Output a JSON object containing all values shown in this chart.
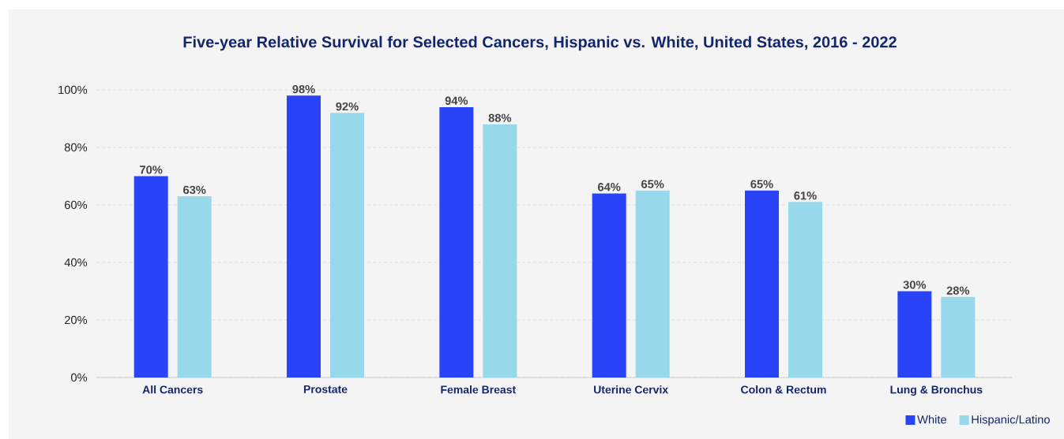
{
  "chart_data": {
    "type": "bar",
    "title": "Five-year Relative Survival for Selected Cancers, Hispanic vs. White, United States, 2016 - 2022",
    "categories": [
      "All Cancers",
      "Prostate",
      "Female Breast",
      "Uterine Cervix",
      "Colon & Rectum",
      "Lung & Bronchus"
    ],
    "series": [
      {
        "name": "White",
        "color": "#2944f7",
        "values": [
          70,
          98,
          94,
          64,
          65,
          30
        ],
        "value_labels": [
          "70%",
          "98%",
          "94%",
          "64%",
          "65%",
          "30%"
        ]
      },
      {
        "name": "Hispanic/Latino",
        "color": "#97d8eb",
        "values": [
          63,
          92,
          88,
          65,
          61,
          28
        ],
        "value_labels": [
          "63%",
          "92%",
          "88%",
          "65%",
          "61%",
          "28%"
        ]
      }
    ],
    "ylim": [
      0,
      100
    ],
    "yticks": [
      {
        "value": 0,
        "label": "0%"
      },
      {
        "value": 20,
        "label": "20%"
      },
      {
        "value": 40,
        "label": "40%"
      },
      {
        "value": 60,
        "label": "60%"
      },
      {
        "value": 80,
        "label": "80%"
      },
      {
        "value": 100,
        "label": "100%"
      }
    ],
    "grid": "y",
    "legend": "bottom right"
  }
}
